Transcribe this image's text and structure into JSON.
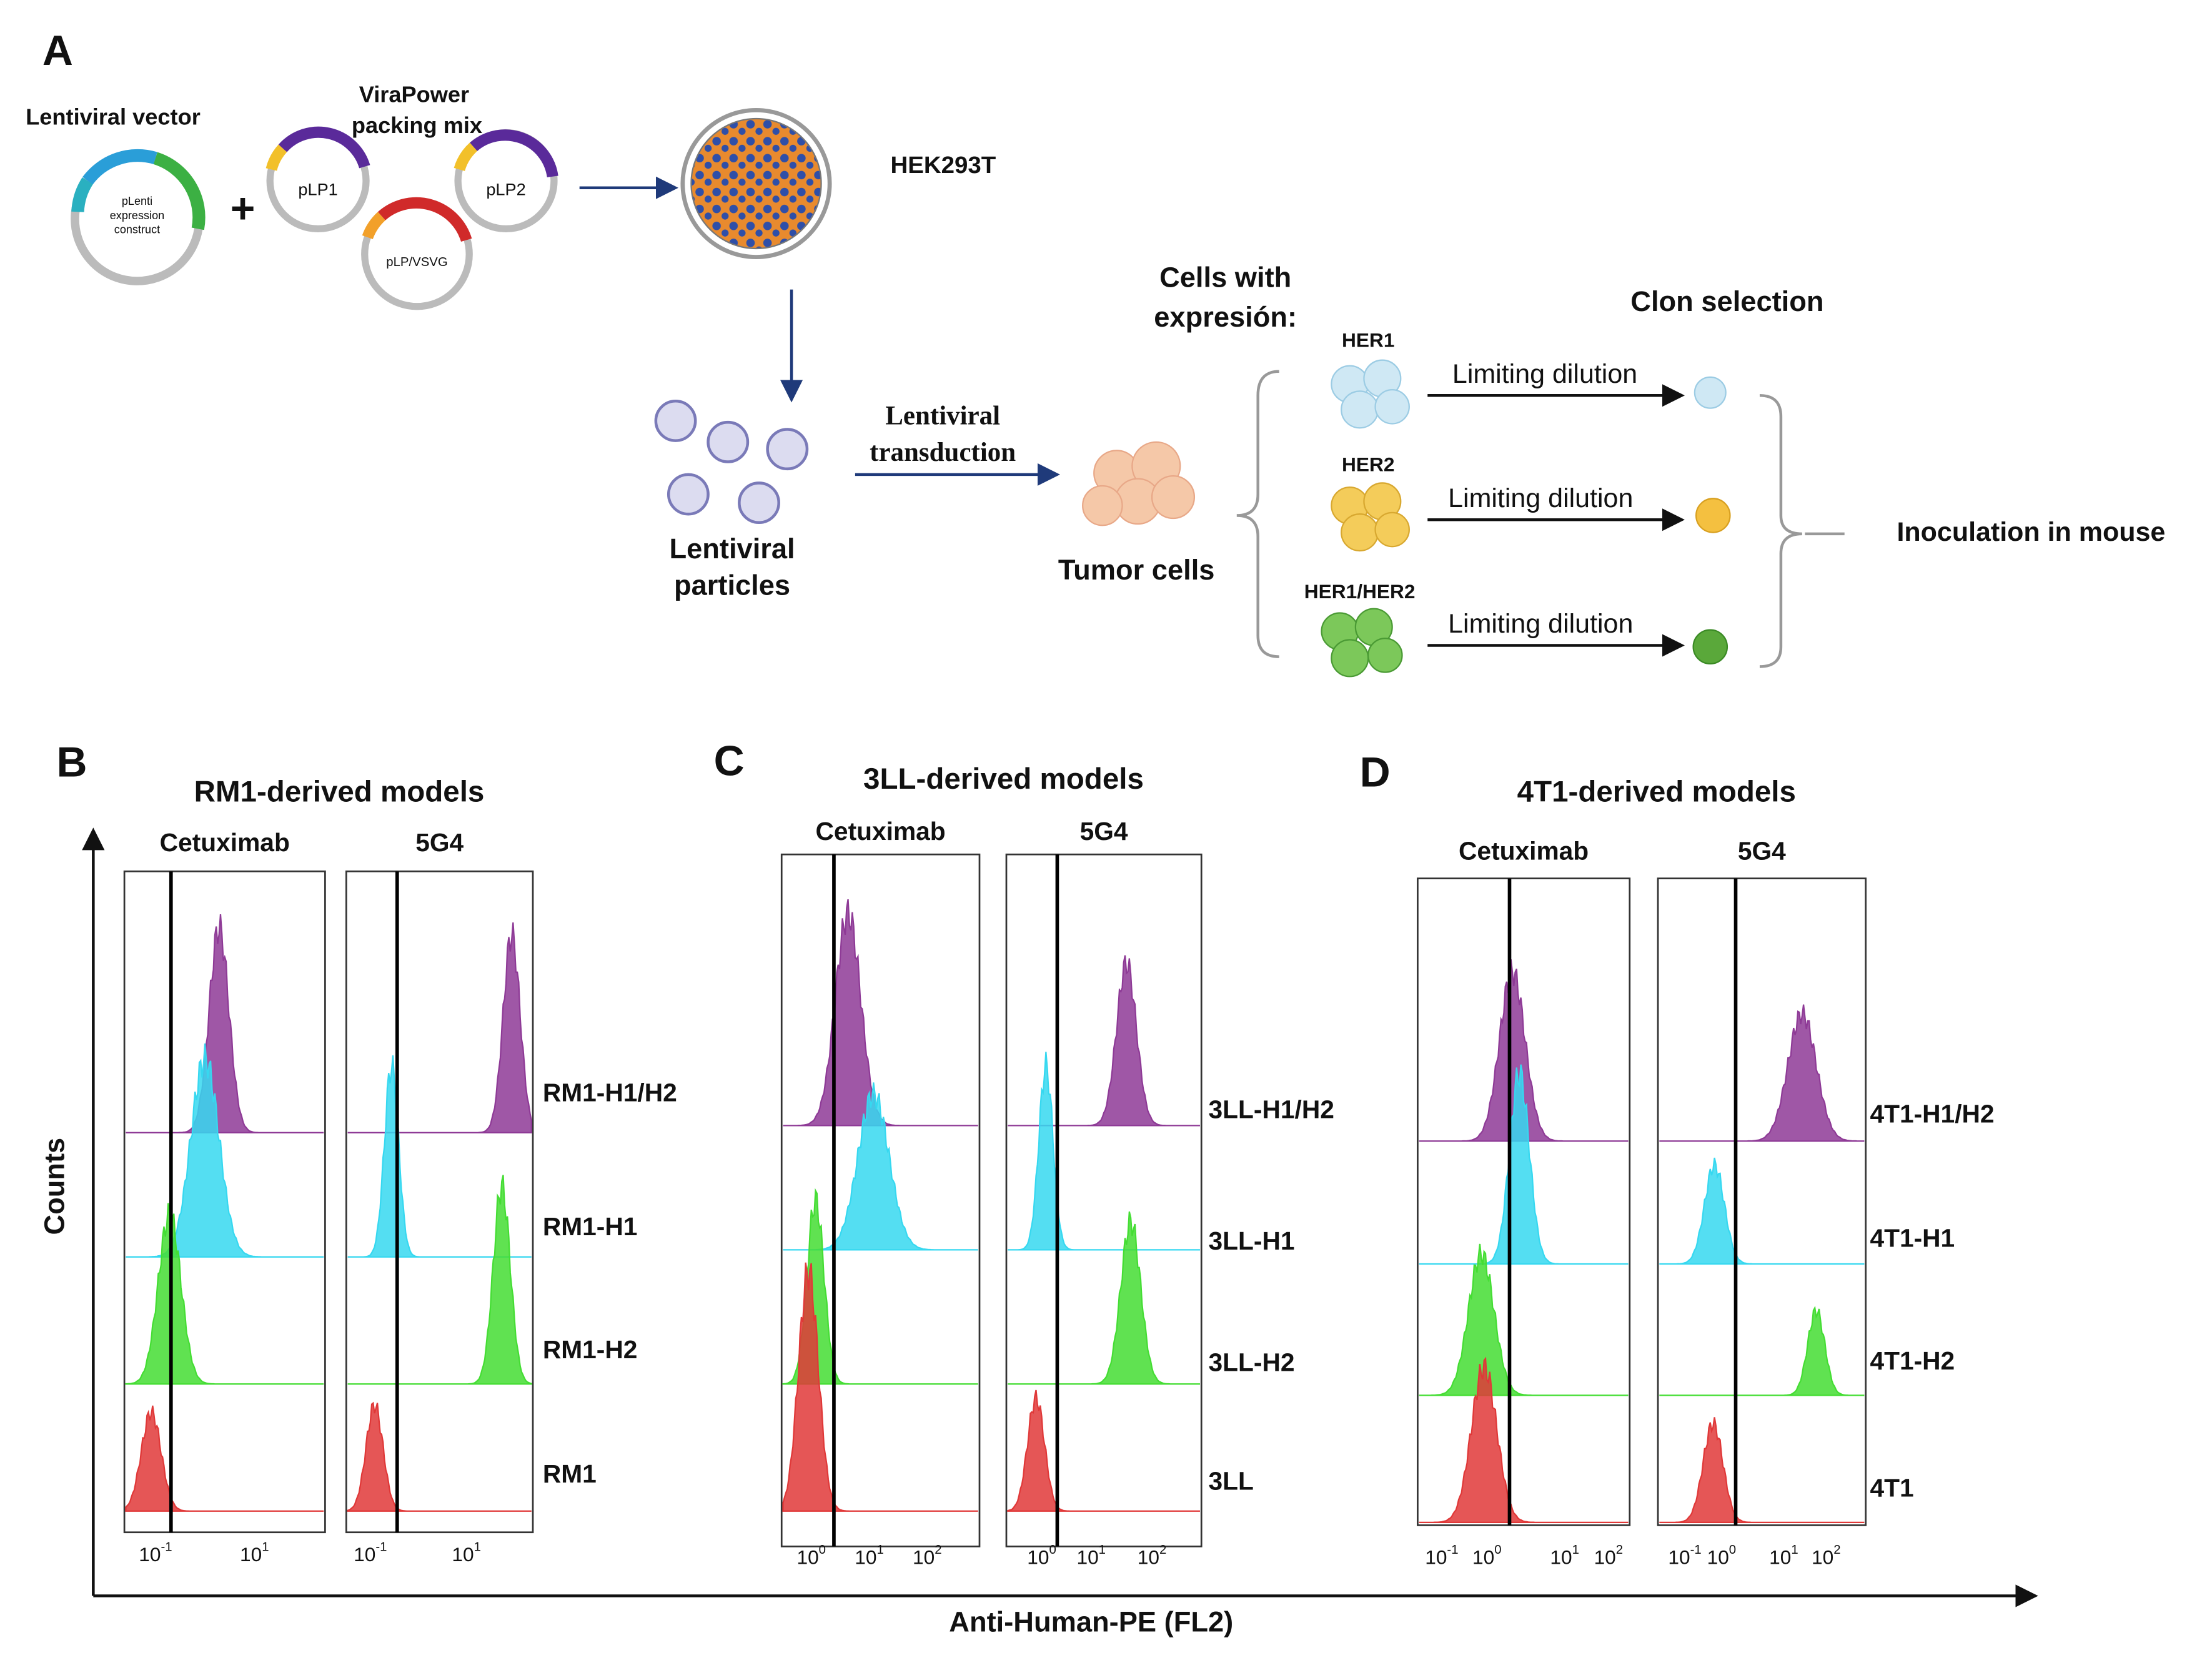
{
  "panel_a": {
    "label": "A",
    "vector_title": "Lentiviral vector",
    "construct": [
      "pLenti",
      "expression",
      "construct"
    ],
    "packing_mix": [
      "ViraPower",
      "packing mix"
    ],
    "plasmids": [
      "pLP1",
      "pLP2",
      "pLP/VSVG"
    ],
    "cell_line": "HEK293T",
    "particles": [
      "Lentiviral",
      "particles"
    ],
    "transduction": [
      "Lentiviral",
      "transduction"
    ],
    "tumor": "Tumor cells",
    "cells_with": [
      "Cells with",
      "expresión:"
    ],
    "clon": "Clon selection",
    "groups": [
      "HER1",
      "HER2",
      "HER1/HER2"
    ],
    "dilution": "Limiting dilution",
    "inoculation": "Inoculation in mouse"
  },
  "y_axis": "Counts",
  "x_axis": "Anti-Human-PE (FL2)",
  "panels": [
    {
      "label": "B",
      "title": "RM1-derived models",
      "columns": [
        "Cetuximab",
        "5G4"
      ],
      "rows": [
        "RM1-H1/H2",
        "RM1-H1",
        "RM1-H2",
        "RM1"
      ],
      "ticks": [
        [
          {
            "base": "10",
            "exp": "-1"
          },
          {
            "base": "10",
            "exp": "1"
          }
        ],
        [
          {
            "base": "10",
            "exp": "-1"
          },
          {
            "base": "10",
            "exp": "1"
          }
        ]
      ]
    },
    {
      "label": "C",
      "title": "3LL-derived models",
      "columns": [
        "Cetuximab",
        "5G4"
      ],
      "rows": [
        "3LL-H1/H2",
        "3LL-H1",
        "3LL-H2",
        "3LL"
      ],
      "ticks": [
        [
          {
            "base": "10",
            "exp": "0"
          },
          {
            "base": "10",
            "exp": "1"
          },
          {
            "base": "10",
            "exp": "2"
          }
        ],
        [
          {
            "base": "10",
            "exp": "0"
          },
          {
            "base": "10",
            "exp": "1"
          },
          {
            "base": "10",
            "exp": "2"
          }
        ]
      ]
    },
    {
      "label": "D",
      "title": "4T1-derived models",
      "columns": [
        "Cetuximab",
        "5G4"
      ],
      "rows": [
        "4T1-H1/H2",
        "4T1-H1",
        "4T1-H2",
        "4T1"
      ],
      "ticks": [
        [
          {
            "base": "10",
            "exp": "-1"
          },
          {
            "base": "10",
            "exp": "0"
          },
          {
            "base": "10",
            "exp": "1"
          },
          {
            "base": "10",
            "exp": "2"
          }
        ],
        [
          {
            "base": "10",
            "exp": "-1"
          },
          {
            "base": "10",
            "exp": "0"
          },
          {
            "base": "10",
            "exp": "1"
          },
          {
            "base": "10",
            "exp": "2"
          }
        ]
      ]
    }
  ]
}
